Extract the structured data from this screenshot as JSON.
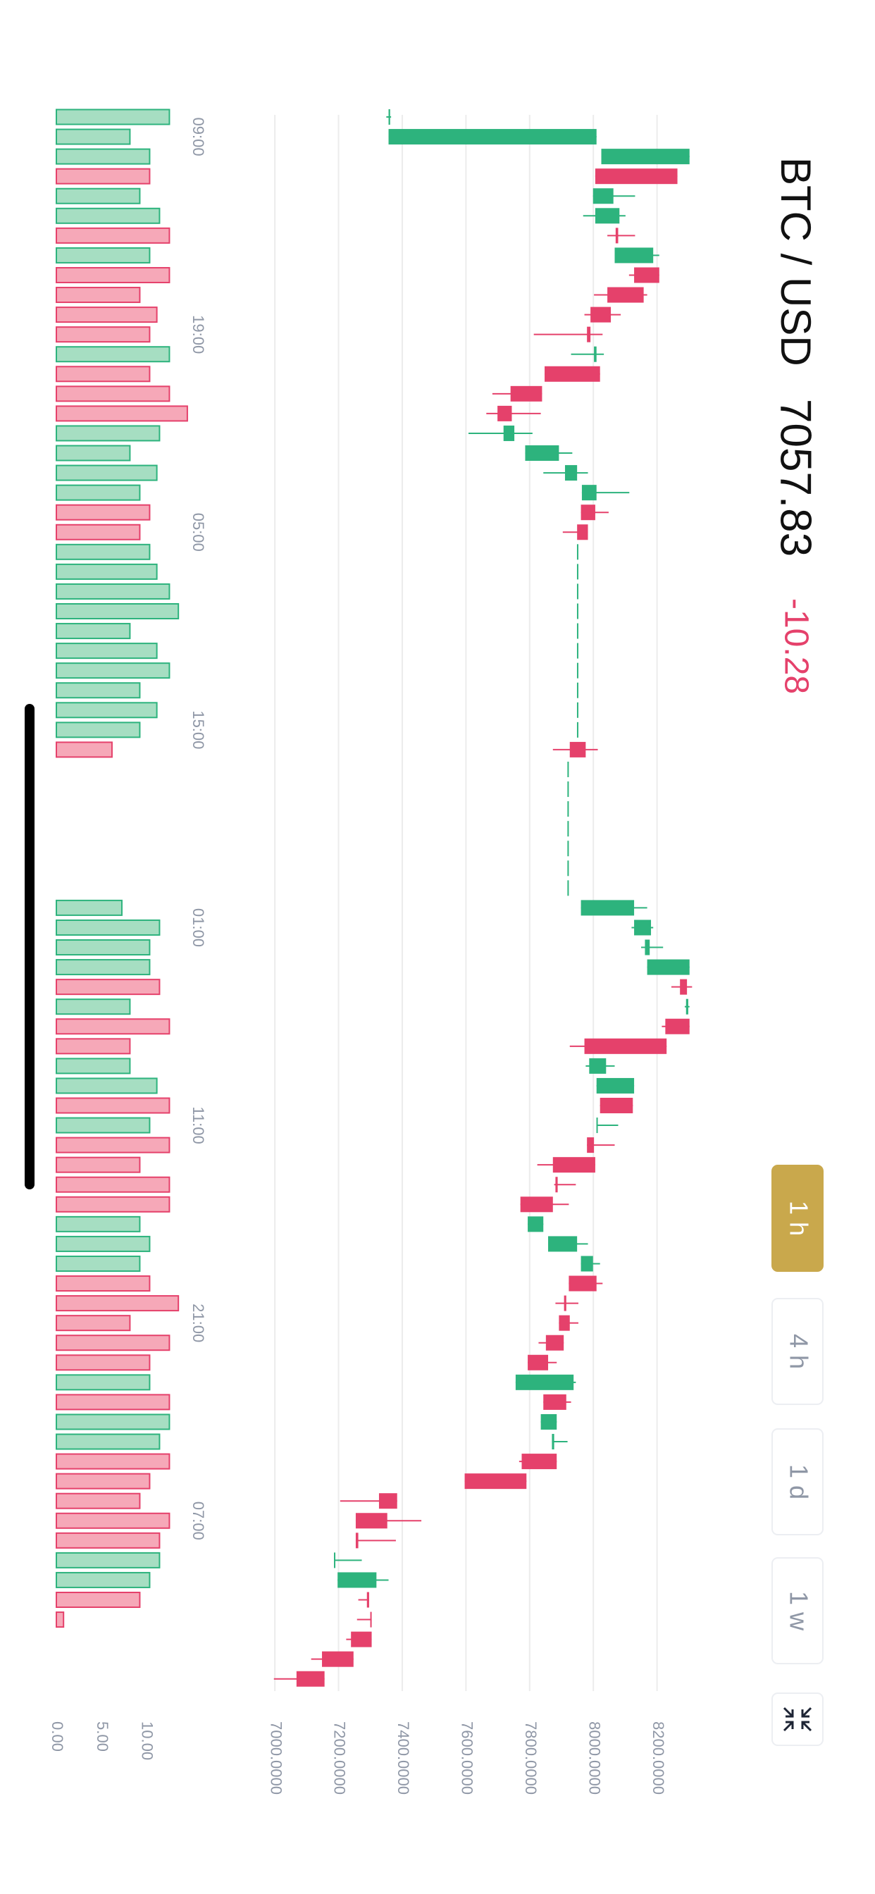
{
  "chart_data": {
    "type": "candlestick",
    "title": "BTC / USD",
    "last_price": 7057.83,
    "change": -10.28,
    "intervals": [
      "1 h",
      "4 h",
      "1 d",
      "1 w"
    ],
    "up_color": "#2db37d",
    "down_color": "#e5416b",
    "categories": [
      null,
      "09:00",
      null,
      null,
      null,
      null,
      null,
      null,
      null,
      null,
      null,
      "19:00",
      null,
      null,
      null,
      null,
      null,
      null,
      null,
      null,
      null,
      "05:00",
      null,
      null,
      null,
      null,
      null,
      null,
      null,
      null,
      null,
      "15:00",
      null,
      null,
      null,
      null,
      null,
      null,
      null,
      null,
      null,
      "01:00",
      null,
      null,
      null,
      null,
      null,
      null,
      null,
      null,
      null,
      "11:00",
      null,
      null,
      null,
      null,
      null,
      null,
      null,
      null,
      null,
      "21:00",
      null,
      null,
      null,
      null,
      null,
      null,
      null,
      null,
      null,
      "07:00",
      null,
      null,
      null,
      null,
      null,
      null,
      null,
      null
    ],
    "open": [
      7357,
      7357,
      8025,
      8264,
      7999,
      8006,
      8078,
      8067,
      8207,
      8158,
      8055,
      7991,
      8002,
      8021,
      7839,
      7744,
      7718,
      7786,
      7911,
      7964,
      8006,
      7983,
      7953,
      7953,
      7953,
      7953,
      7953,
      7953,
      7953,
      7953,
      7953,
      7953,
      7976,
      7923,
      7923,
      7923,
      7923,
      7923,
      7923,
      7923,
      7961,
      8128,
      8162,
      8169,
      8294,
      8291,
      8302,
      8230,
      7987,
      8010,
      8124,
      8010,
      8002,
      8006,
      7888,
      7873,
      7794,
      7858,
      7961,
      8010,
      7915,
      7926,
      7907,
      7858,
      7756,
      7915,
      7835,
      7870,
      7885,
      7790,
      7384,
      7353,
      7262,
      7186,
      7197,
      7296,
      7304,
      7304,
      7247,
      7156
    ],
    "high": [
      7365,
      8010,
      8302,
      8264,
      8131,
      8101,
      8131,
      8207,
      8207,
      8169,
      8086,
      8029,
      8033,
      8021,
      7839,
      7835,
      7809,
      7934,
      7983,
      8113,
      8048,
      7983,
      7953,
      7953,
      7953,
      7953,
      7953,
      7953,
      7953,
      7953,
      7953,
      7953,
      8014,
      7923,
      7923,
      7923,
      7923,
      7923,
      7923,
      7923,
      8169,
      8188,
      8219,
      8302,
      8310,
      8302,
      8302,
      8230,
      8067,
      8128,
      8124,
      8078,
      8067,
      8006,
      7945,
      7923,
      7843,
      7983,
      8021,
      8029,
      7953,
      7953,
      7907,
      7885,
      7945,
      7930,
      7885,
      7919,
      7885,
      7790,
      7384,
      7460,
      7380,
      7273,
      7357,
      7296,
      7304,
      7304,
      7247,
      7156
    ],
    "low": [
      7350,
      7357,
      8025,
      8006,
      7999,
      7968,
      8044,
      8067,
      8112,
      8002,
      7972,
      7813,
      7930,
      7847,
      7683,
      7664,
      7608,
      7786,
      7843,
      7964,
      7961,
      7904,
      7953,
      7953,
      7953,
      7953,
      7953,
      7953,
      7953,
      7953,
      7953,
      7953,
      7873,
      7923,
      7923,
      7923,
      7923,
      7923,
      7923,
      7923,
      7961,
      8120,
      8150,
      8169,
      8245,
      8287,
      8215,
      7926,
      7976,
      8010,
      8021,
      8010,
      7980,
      7824,
      7877,
      7771,
      7794,
      7858,
      7961,
      7923,
      7881,
      7892,
      7828,
      7794,
      7756,
      7843,
      7835,
      7870,
      7767,
      7596,
      7205,
      7254,
      7254,
      7186,
      7197,
      7262,
      7258,
      7224,
      7114,
      6997
    ],
    "close": [
      7362,
      8010,
      8302,
      8006,
      8063,
      8082,
      8070,
      8188,
      8128,
      8044,
      7991,
      7980,
      8010,
      7847,
      7740,
      7699,
      7752,
      7892,
      7949,
      8010,
      7961,
      7949,
      7953,
      7953,
      7953,
      7953,
      7953,
      7953,
      7953,
      7953,
      7953,
      7953,
      7926,
      7923,
      7923,
      7923,
      7923,
      7923,
      7923,
      7923,
      8128,
      8181,
      8177,
      8302,
      8272,
      8298,
      8226,
      7972,
      8040,
      8128,
      8021,
      8014,
      7980,
      7873,
      7881,
      7771,
      7843,
      7949,
      7999,
      7923,
      7908,
      7892,
      7851,
      7794,
      7938,
      7843,
      7885,
      7877,
      7775,
      7596,
      7327,
      7254,
      7254,
      7190,
      7319,
      7289,
      7300,
      7239,
      7148,
      7068
    ],
    "volume": [
      12.6,
      8.2,
      10.4,
      10.4,
      9.3,
      11.5,
      12.6,
      10.4,
      12.6,
      9.3,
      11.2,
      10.4,
      12.6,
      10.4,
      12.6,
      14.6,
      11.5,
      8.2,
      11.2,
      9.3,
      10.4,
      9.3,
      10.4,
      11.2,
      12.6,
      13.6,
      8.2,
      11.2,
      12.6,
      9.3,
      11.2,
      9.3,
      6.2,
      0,
      0,
      0,
      0,
      0,
      0,
      0,
      7.3,
      11.5,
      10.4,
      10.4,
      11.5,
      8.2,
      12.6,
      8.2,
      8.2,
      11.2,
      12.6,
      10.4,
      12.6,
      9.3,
      12.6,
      12.6,
      9.3,
      10.4,
      9.3,
      10.4,
      13.6,
      8.2,
      12.6,
      10.4,
      10.4,
      12.6,
      12.6,
      11.5,
      12.6,
      10.4,
      9.3,
      12.6,
      11.5,
      11.5,
      10.4,
      9.3,
      0.8,
      0,
      0,
      0
    ],
    "ylim": [
      6940,
      8380
    ],
    "yticks": [
      {
        "value": 7000,
        "label": "7000.0000"
      },
      {
        "value": 7200,
        "label": "7200.0000"
      },
      {
        "value": 7400,
        "label": "7400.0000"
      },
      {
        "value": 7600,
        "label": "7600.0000"
      },
      {
        "value": 7800,
        "label": "7800.0000"
      },
      {
        "value": 8000,
        "label": "8000.0000"
      },
      {
        "value": 8200,
        "label": "8200.0000"
      }
    ],
    "volume_ylim": [
      0,
      15
    ],
    "volume_yticks": [
      {
        "value": 0,
        "label": "0.00"
      },
      {
        "value": 5,
        "label": "5.00"
      },
      {
        "value": 10,
        "label": "10.00"
      }
    ],
    "grid": true
  }
}
